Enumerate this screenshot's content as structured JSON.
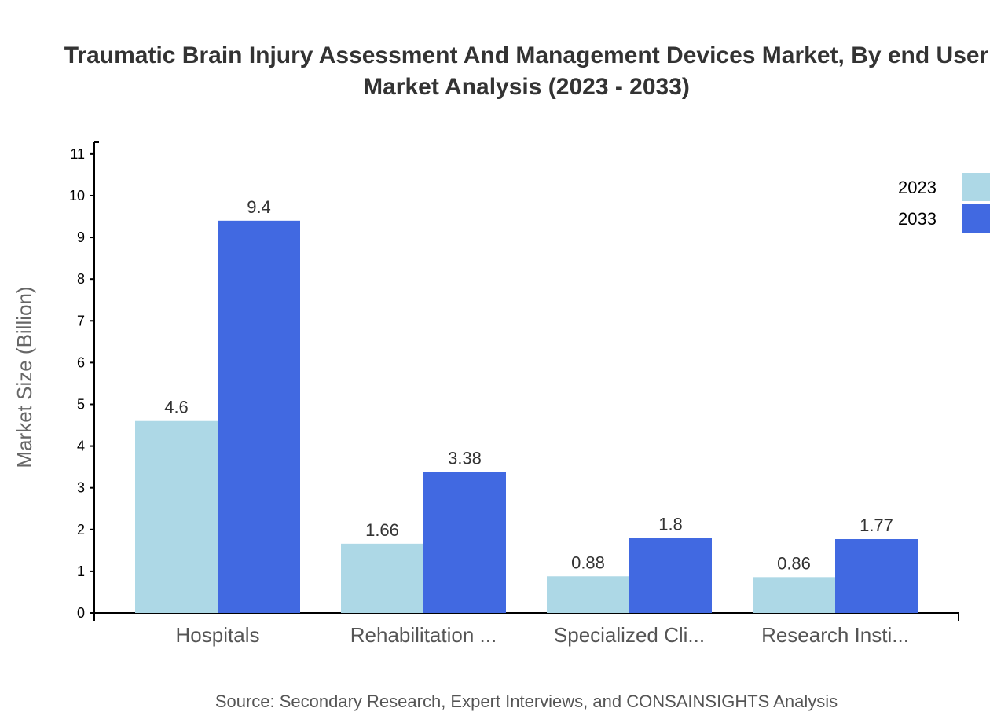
{
  "chart_data": {
    "type": "bar",
    "title_lines": [
      "Traumatic Brain Injury Assessment And Management Devices Market, By end User",
      "Market Analysis (2023 - 2033)"
    ],
    "xlabel": "",
    "ylabel": "Market Size (Billion)",
    "categories": [
      "Hospitals",
      "Rehabilitation ...",
      "Specialized Cli...",
      "Research Insti..."
    ],
    "series": [
      {
        "name": "2023",
        "color": "#add8e6",
        "values": [
          4.6,
          1.66,
          0.88,
          0.86
        ]
      },
      {
        "name": "2033",
        "color": "#4169e1",
        "values": [
          9.4,
          3.38,
          1.8,
          1.77
        ]
      }
    ],
    "ylim": [
      0,
      11.28
    ],
    "yticks": [
      0,
      1,
      2,
      3,
      4,
      5,
      6,
      7,
      8,
      9,
      10,
      11
    ],
    "grid": false,
    "legend_position": "top-right",
    "source": "Source: Secondary Research, Expert Interviews, and CONSAINSIGHTS Analysis"
  }
}
